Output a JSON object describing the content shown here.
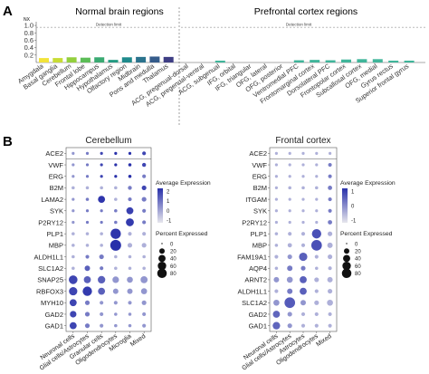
{
  "panel_labels": {
    "a": "A",
    "b": "B"
  },
  "top": {
    "left_title": "Normal brain regions",
    "right_title": "Prefrontal cortex regions",
    "y_unit": "NX",
    "threshold_label": "Detection limit",
    "y_ticks": [
      "1.0",
      "0.8",
      "0.6",
      "0.4",
      "0.2"
    ],
    "brain_regions": [
      "Amygdala",
      "Basal ganglia",
      "Cerebellum",
      "Frontal lobe",
      "Hippocampus",
      "Hypothalamus",
      "Olfactory region",
      "Midbrain",
      "Pons and medulla",
      "Thalamus"
    ],
    "pfc_regions": [
      "ACG, pregenual-dorsal",
      "ACG, pregenual-ventral",
      "ACG, subgenual",
      "IFG, orbital",
      "IFG, triangular",
      "OFG, lateral",
      "OFG, posterior",
      "Ventromedial PFC",
      "Frontomarginal cortex",
      "Dorsolateral PFC",
      "Frontopolar cortex",
      "Subcallosal cortex",
      "OFG, medial",
      "Gyrus rectus",
      "Superior frontal gyrus"
    ],
    "chart_data": {
      "type": "bar",
      "ylim": [
        0,
        1.1
      ],
      "threshold": 0.95,
      "brain_values": [
        0.12,
        0.12,
        0.14,
        0.13,
        0.14,
        0.07,
        0.14,
        0.15,
        0.16,
        0.15
      ],
      "brain_colors": [
        "#f2e33a",
        "#c8dc35",
        "#93cf3d",
        "#5cbd57",
        "#3aaa72",
        "#239a82",
        "#1f8a8c",
        "#2b738d",
        "#355c8b",
        "#3e3e84"
      ],
      "pfc_values": [
        0,
        0,
        0.05,
        0,
        0,
        0,
        0,
        0.06,
        0.07,
        0.06,
        0.08,
        0.09,
        0.09,
        0.05,
        0.05
      ],
      "pfc_color": "#3fb59a"
    }
  },
  "bottom": {
    "genes_cerebellum": [
      "ACE2",
      "VWF",
      "ERG",
      "B2M",
      "LAMA2",
      "SYK",
      "P2RY12",
      "PLP1",
      "MBP",
      "ALDH1L1",
      "SLC1A2",
      "SNAP25",
      "RBFOX3",
      "MYH10",
      "GAD2",
      "GAD1"
    ],
    "genes_frontal": [
      "ACE2",
      "VWF",
      "ERG",
      "B2M",
      "ITGAM",
      "SYK",
      "P2RY12",
      "PLP1",
      "MBP",
      "FAM19A1",
      "AQP4",
      "ARNT2",
      "ALDH1L1",
      "SLC1A2",
      "GAD2",
      "GAD1"
    ],
    "cerebellum_title": "Cerebellum",
    "frontal_title": "Frontal cortex",
    "cell_types_cerebellum": [
      "Neuronal cells",
      "Glial cells/Astrocytes",
      "Granular cells",
      "Oligodendrocytes",
      "Microglia",
      "Mixed"
    ],
    "cell_types_frontal": [
      "Neuronal cells",
      "Glial cells/Astrocytes",
      "Astrocytes",
      "Oligodendrocytes",
      "Mixed"
    ],
    "legend": {
      "avg_title": "Average Expression",
      "avg_ticks": [
        "2",
        "1",
        "0",
        "-1"
      ],
      "avg_ticks_frontal": [
        "1",
        "0",
        "-1"
      ],
      "pct_title": "Percent Expressed",
      "pct_ticks": [
        "0",
        "20",
        "40",
        "60",
        "80"
      ]
    },
    "chart_data": {
      "type": "dot",
      "cerebellum": [
        [
          [
            2,
            0.5,
            -1
          ],
          [
            2,
            1,
            -1
          ],
          [
            2,
            2,
            -1
          ],
          [
            2,
            3,
            -1
          ],
          [
            2,
            4,
            -1
          ],
          [
            5,
            2,
            0
          ]
        ],
        [
          [
            2,
            0.5,
            -1
          ],
          [
            2,
            1,
            -1
          ],
          [
            2,
            2,
            -1
          ],
          [
            2,
            3,
            -1
          ],
          [
            3,
            4,
            0
          ],
          [
            6,
            2,
            0
          ]
        ],
        [
          [
            2,
            0.5,
            -1
          ],
          [
            2,
            1,
            -1
          ],
          [
            2,
            2,
            -1
          ],
          [
            2,
            3,
            -1
          ],
          [
            3,
            4,
            0
          ],
          [
            5,
            1,
            0
          ]
        ],
        [
          [
            3,
            0,
            -1
          ],
          [
            3,
            0,
            -1
          ],
          [
            3,
            0,
            -1
          ],
          [
            3,
            0,
            -1
          ],
          [
            6,
            1,
            0
          ],
          [
            10,
            2,
            0
          ]
        ],
        [
          [
            2,
            0.5,
            -1
          ],
          [
            3,
            1,
            -1
          ],
          [
            30,
            2.3,
            1
          ],
          [
            3,
            0,
            -1
          ],
          [
            5,
            1,
            0
          ],
          [
            10,
            1,
            0
          ]
        ],
        [
          [
            2,
            0.5,
            -1
          ],
          [
            2,
            1,
            -1
          ],
          [
            2,
            1,
            -1
          ],
          [
            3,
            1,
            -1
          ],
          [
            30,
            2.1,
            1
          ],
          [
            5,
            1,
            0
          ]
        ],
        [
          [
            2,
            0.5,
            -1
          ],
          [
            2,
            1,
            -1
          ],
          [
            2,
            1,
            -1
          ],
          [
            3,
            1,
            -1
          ],
          [
            40,
            2.2,
            1
          ],
          [
            5,
            1,
            0
          ]
        ],
        [
          [
            3,
            0,
            -1
          ],
          [
            3,
            0,
            -1
          ],
          [
            3,
            0,
            -1
          ],
          [
            75,
            2.3,
            1
          ],
          [
            5,
            0,
            -1
          ],
          [
            5,
            0,
            -1
          ]
        ],
        [
          [
            3,
            0,
            -1
          ],
          [
            3,
            0,
            -1
          ],
          [
            3,
            0,
            -1
          ],
          [
            85,
            2.4,
            1
          ],
          [
            10,
            0,
            -1
          ],
          [
            10,
            0,
            -1
          ]
        ],
        [
          [
            3,
            0,
            -1
          ],
          [
            5,
            1,
            -1
          ],
          [
            10,
            1,
            0
          ],
          [
            3,
            0,
            -1
          ],
          [
            3,
            0,
            -1
          ],
          [
            3,
            0,
            -1
          ]
        ],
        [
          [
            3,
            0,
            -1
          ],
          [
            15,
            1.5,
            0
          ],
          [
            5,
            1,
            -1
          ],
          [
            3,
            0,
            -1
          ],
          [
            3,
            0,
            -1
          ],
          [
            3,
            0,
            -1
          ]
        ],
        [
          [
            50,
            2,
            1
          ],
          [
            30,
            1.5,
            0
          ],
          [
            35,
            1.5,
            0
          ],
          [
            25,
            0.5,
            -1
          ],
          [
            20,
            0.5,
            -1
          ],
          [
            30,
            0.5,
            -1
          ]
        ],
        [
          [
            45,
            2,
            1
          ],
          [
            60,
            2.2,
            1
          ],
          [
            30,
            1.5,
            0
          ],
          [
            15,
            0.5,
            -1
          ],
          [
            15,
            0.5,
            -1
          ],
          [
            20,
            0.5,
            -1
          ]
        ],
        [
          [
            30,
            2,
            1
          ],
          [
            10,
            1,
            0
          ],
          [
            5,
            0.5,
            -1
          ],
          [
            5,
            0.5,
            -1
          ],
          [
            5,
            0.5,
            -1
          ],
          [
            10,
            0.5,
            -1
          ]
        ],
        [
          [
            25,
            2,
            1
          ],
          [
            10,
            1,
            0
          ],
          [
            5,
            0.5,
            -1
          ],
          [
            3,
            0.5,
            -1
          ],
          [
            3,
            0.5,
            -1
          ],
          [
            5,
            0.5,
            -1
          ]
        ],
        [
          [
            30,
            2,
            1
          ],
          [
            10,
            1,
            0
          ],
          [
            5,
            0.5,
            -1
          ],
          [
            3,
            0.5,
            -1
          ],
          [
            3,
            0.5,
            -1
          ],
          [
            5,
            0.5,
            -1
          ]
        ]
      ],
      "frontal": [
        [
          [
            2,
            0,
            -1
          ],
          [
            2,
            0,
            -1
          ],
          [
            2,
            0,
            -1
          ],
          [
            2,
            0,
            -1
          ],
          [
            2,
            0,
            -1
          ]
        ],
        [
          [
            2,
            0,
            -1
          ],
          [
            2,
            0,
            -1
          ],
          [
            2,
            0,
            -1
          ],
          [
            2,
            0,
            -1
          ],
          [
            5,
            1,
            0
          ]
        ],
        [
          [
            2,
            0,
            -1
          ],
          [
            2,
            0,
            -1
          ],
          [
            2,
            0,
            -1
          ],
          [
            2,
            0,
            -1
          ],
          [
            5,
            1,
            0
          ]
        ],
        [
          [
            2,
            0,
            -1
          ],
          [
            3,
            0,
            -1
          ],
          [
            3,
            0,
            -1
          ],
          [
            3,
            0,
            -1
          ],
          [
            8,
            1,
            0
          ]
        ],
        [
          [
            2,
            0,
            -1
          ],
          [
            2,
            0,
            -1
          ],
          [
            2,
            0,
            -1
          ],
          [
            2,
            0,
            -1
          ],
          [
            5,
            1,
            0
          ]
        ],
        [
          [
            2,
            0,
            -1
          ],
          [
            2,
            0,
            -1
          ],
          [
            2,
            0,
            -1
          ],
          [
            2,
            0,
            -1
          ],
          [
            5,
            1,
            0
          ]
        ],
        [
          [
            2,
            0,
            -1
          ],
          [
            2,
            0,
            -1
          ],
          [
            2,
            0,
            -1
          ],
          [
            2,
            0,
            -1
          ],
          [
            8,
            1,
            0
          ]
        ],
        [
          [
            3,
            0,
            -1
          ],
          [
            5,
            0,
            -1
          ],
          [
            5,
            0,
            -1
          ],
          [
            60,
            1.8,
            1
          ],
          [
            10,
            0,
            -1
          ]
        ],
        [
          [
            3,
            0,
            -1
          ],
          [
            8,
            0,
            -1
          ],
          [
            5,
            0,
            -1
          ],
          [
            80,
            1.8,
            1
          ],
          [
            15,
            0,
            -1
          ]
        ],
        [
          [
            5,
            0,
            -1
          ],
          [
            10,
            0.5,
            0
          ],
          [
            45,
            1.5,
            1
          ],
          [
            5,
            0,
            -1
          ],
          [
            10,
            0,
            -1
          ]
        ],
        [
          [
            3,
            0,
            -1
          ],
          [
            15,
            1,
            0
          ],
          [
            10,
            1,
            0
          ],
          [
            3,
            0,
            -1
          ],
          [
            5,
            0,
            -1
          ]
        ],
        [
          [
            15,
            0.5,
            0
          ],
          [
            20,
            0.5,
            0
          ],
          [
            30,
            1.5,
            1
          ],
          [
            10,
            0,
            -1
          ],
          [
            15,
            0,
            -1
          ]
        ],
        [
          [
            5,
            0,
            -1
          ],
          [
            15,
            1,
            0
          ],
          [
            30,
            1.5,
            1
          ],
          [
            5,
            0,
            -1
          ],
          [
            10,
            0,
            -1
          ]
        ],
        [
          [
            20,
            0.5,
            0
          ],
          [
            80,
            1.6,
            1
          ],
          [
            15,
            0.5,
            0
          ],
          [
            10,
            0,
            -1
          ],
          [
            20,
            0,
            -1
          ]
        ],
        [
          [
            30,
            1.4,
            1
          ],
          [
            10,
            0.5,
            0
          ],
          [
            5,
            0,
            -1
          ],
          [
            5,
            0,
            -1
          ],
          [
            5,
            0,
            -1
          ]
        ],
        [
          [
            35,
            1.4,
            1
          ],
          [
            10,
            0.5,
            0
          ],
          [
            5,
            0,
            -1
          ],
          [
            5,
            0,
            -1
          ],
          [
            5,
            0,
            -1
          ]
        ]
      ]
    }
  }
}
